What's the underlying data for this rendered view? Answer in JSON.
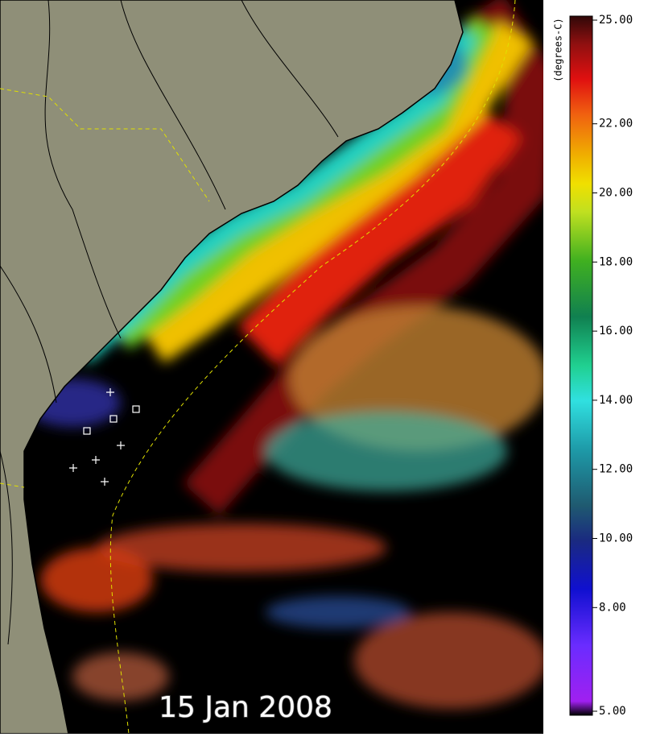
{
  "map": {
    "date_label": "15 Jan 2008",
    "colorbar": {
      "unit_label": "(degrees-C)",
      "range": [
        5,
        25
      ],
      "ticks": [
        {
          "value": 25,
          "label": "25.00"
        },
        {
          "value": 22,
          "label": "22.00"
        },
        {
          "value": 20,
          "label": "20.00"
        },
        {
          "value": 18,
          "label": "18.00"
        },
        {
          "value": 16,
          "label": "16.00"
        },
        {
          "value": 14,
          "label": "14.00"
        },
        {
          "value": 12,
          "label": "12.00"
        },
        {
          "value": 10,
          "label": "10.00"
        },
        {
          "value": 8,
          "label": "8.00"
        },
        {
          "value": 5,
          "label": "5.00"
        }
      ]
    }
  }
}
